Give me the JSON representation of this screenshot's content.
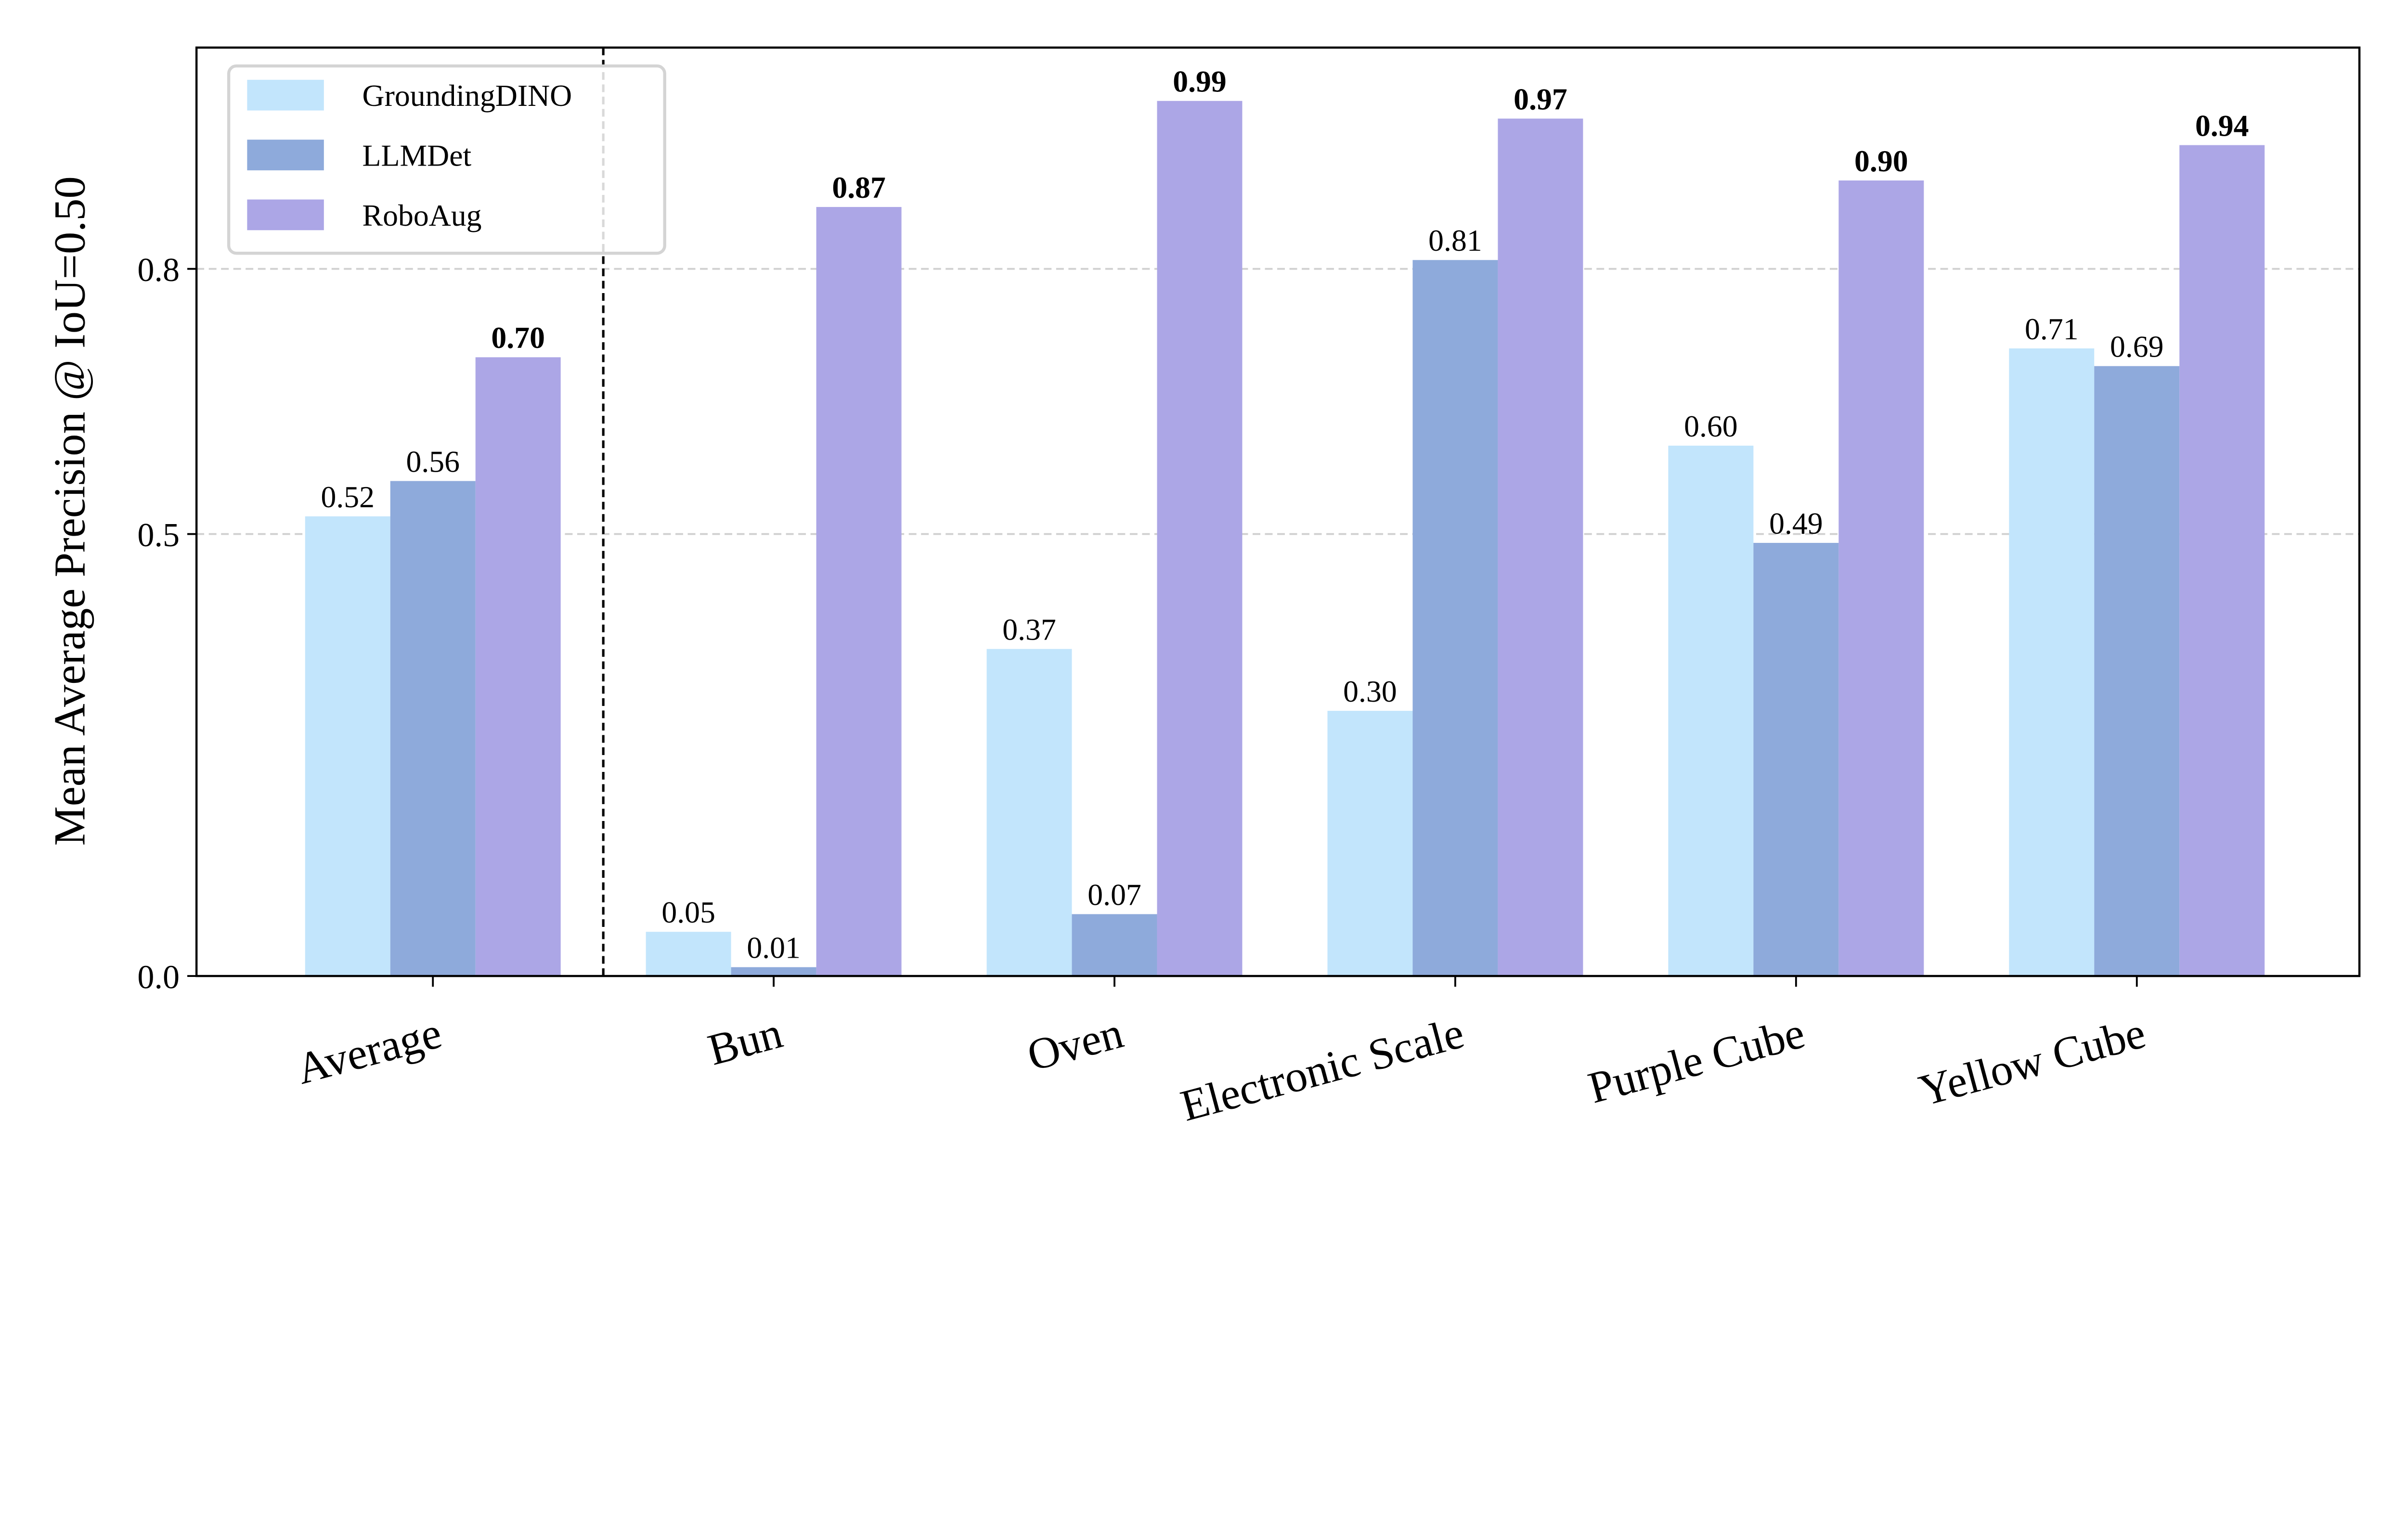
{
  "chart_data": {
    "type": "bar",
    "title": "",
    "xlabel": "",
    "ylabel": "Mean Average Precision @ IoU=0.50",
    "ylim": [
      0,
      1.05
    ],
    "yticks": [
      0.0,
      0.5,
      0.8
    ],
    "ytick_labels": [
      "0.0",
      "0.5",
      "0.8"
    ],
    "grid": "horizontal dashed at y ticks",
    "legend_position": "top-left",
    "separator_after_category": "Average",
    "categories": [
      "Average",
      "Bun",
      "Oven",
      "Electronic Scale",
      "Purple Cube",
      "Yellow Cube"
    ],
    "series": [
      {
        "name": "GroundingDINO",
        "color": "#c2e5fc",
        "values": [
          0.52,
          0.05,
          0.37,
          0.3,
          0.6,
          0.71
        ],
        "labels": [
          "0.52",
          "0.05",
          "0.37",
          "0.30",
          "0.60",
          "0.71"
        ],
        "bold": false
      },
      {
        "name": "LLMDet",
        "color": "#8eaadb",
        "values": [
          0.56,
          0.01,
          0.07,
          0.81,
          0.49,
          0.69
        ],
        "labels": [
          "0.56",
          "0.01",
          "0.07",
          "0.81",
          "0.49",
          "0.69"
        ],
        "bold": false
      },
      {
        "name": "RoboAug",
        "color": "#aca6e6",
        "values": [
          0.7,
          0.87,
          0.99,
          0.97,
          0.9,
          0.94
        ],
        "labels": [
          "0.70",
          "0.87",
          "0.99",
          "0.97",
          "0.90",
          "0.94"
        ],
        "bold": true
      }
    ]
  }
}
